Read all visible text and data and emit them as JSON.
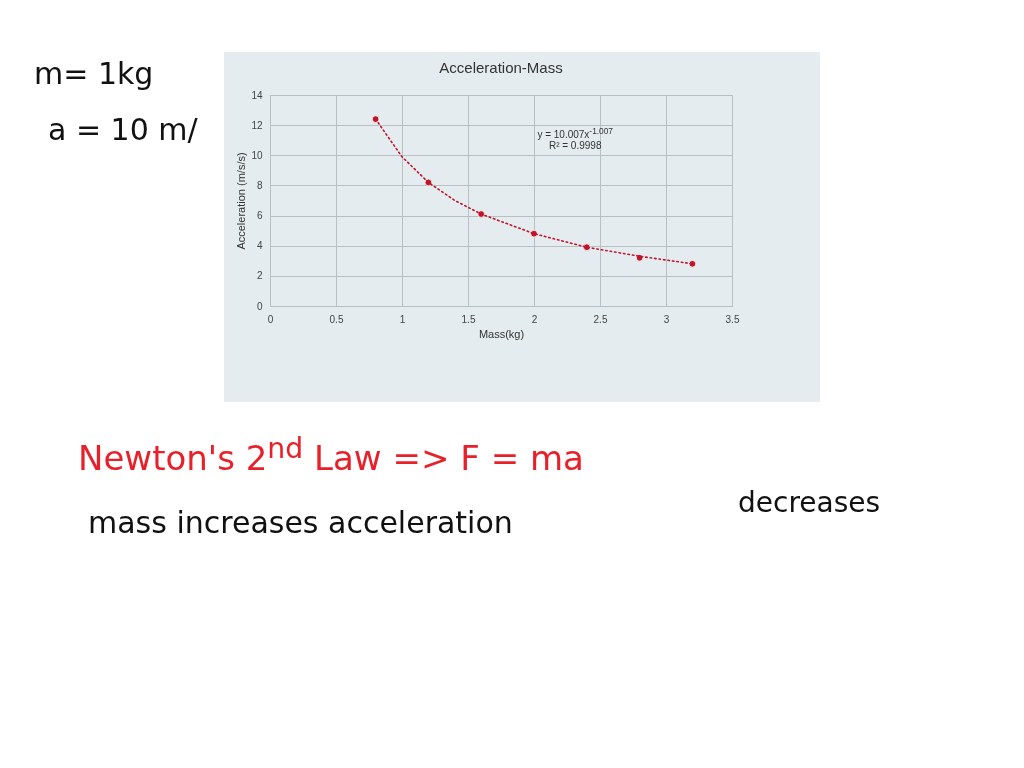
{
  "chart_data": {
    "type": "scatter",
    "title": "Acceleration-Mass",
    "xlabel": "Mass(kg)",
    "ylabel": "Acceleration (m/s/s)",
    "xlim": [
      0,
      3.5
    ],
    "xticks": [
      0,
      0.5,
      1,
      1.5,
      2,
      2.5,
      3,
      3.5
    ],
    "ylim": [
      0,
      14
    ],
    "yticks": [
      0,
      2,
      4,
      6,
      8,
      10,
      12,
      14
    ],
    "grid": true,
    "series": [
      {
        "marker": "circle",
        "color": "#c0142a",
        "x": [
          0.8,
          1.2,
          1.6,
          2,
          2.4,
          2.8,
          3.2
        ],
        "values": [
          12.4,
          8.2,
          6.1,
          4.8,
          3.9,
          3.2,
          2.8
        ]
      },
      {
        "type": "line",
        "line_style": "dotted",
        "color": "#c0142a",
        "x": [
          0.8,
          1,
          1.2,
          1.4,
          1.6,
          2,
          2.4,
          2.8,
          3.2
        ],
        "values": [
          12.4,
          9.9,
          8.2,
          7.0,
          6.1,
          4.8,
          3.9,
          3.3,
          2.8
        ]
      }
    ],
    "annotations": [
      "y = 10.007x$^{-1.007}$",
      "R² = 0.9998",
      "m= 1kg",
      "a = 10 m/",
      "Newton's 2$^{nd}$ Law => F = ma",
      "mass increases acceleration",
      "decreases"
    ]
  }
}
